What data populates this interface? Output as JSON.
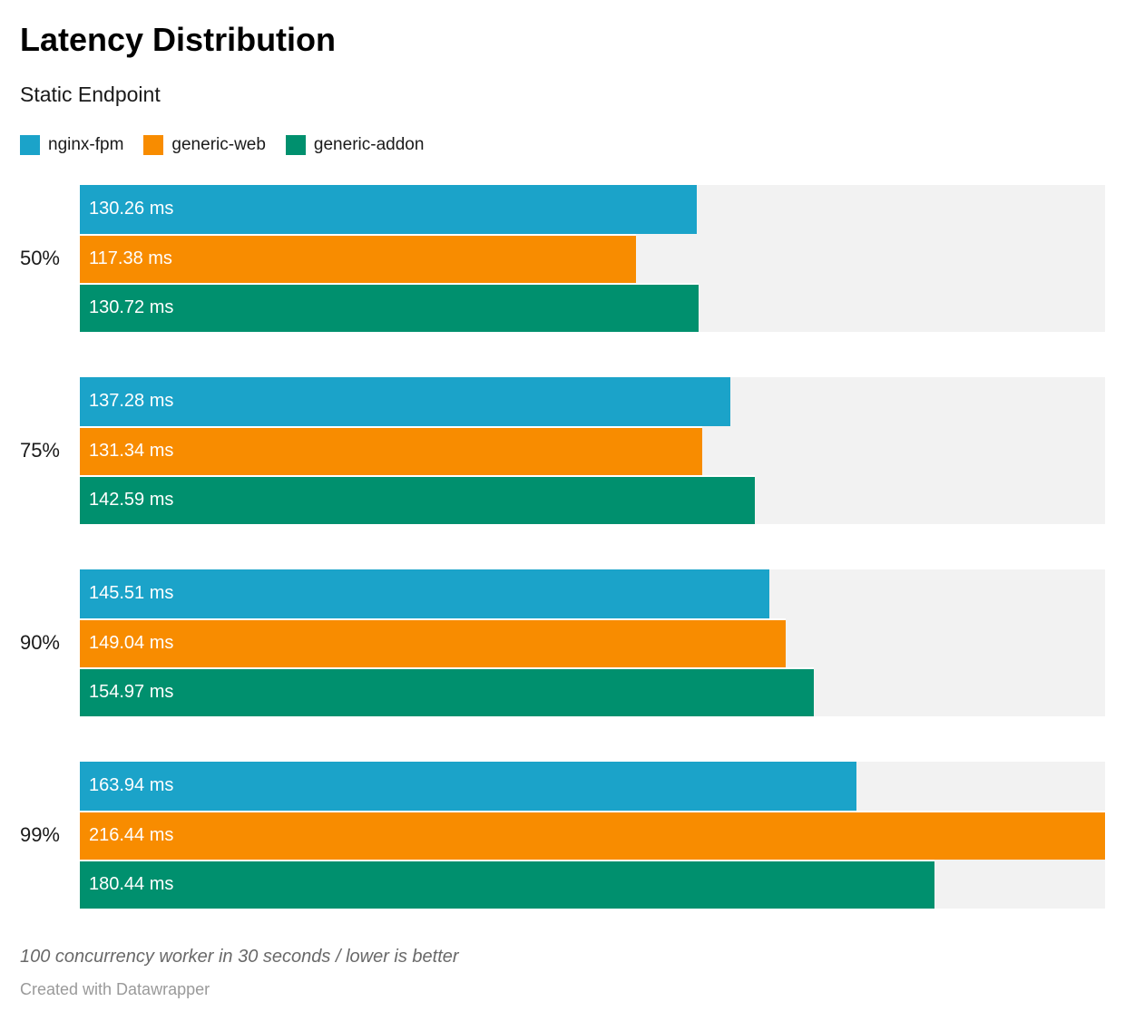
{
  "header": {
    "title": "Latency Distribution",
    "subtitle": "Static Endpoint"
  },
  "colors": {
    "nginx_fpm": "#1ba3c9",
    "generic_web": "#f88c00",
    "generic_addon": "#00906e",
    "track": "#f2f2f2",
    "bar_label": "#ffffff"
  },
  "chart_data": {
    "type": "bar",
    "orientation": "horizontal",
    "unit": "ms",
    "title": "Latency Distribution",
    "subtitle": "Static Endpoint",
    "categories": [
      "50%",
      "75%",
      "90%",
      "99%"
    ],
    "series": [
      {
        "name": "nginx-fpm",
        "color": "#1ba3c9",
        "values": [
          130.26,
          137.28,
          145.51,
          163.94
        ]
      },
      {
        "name": "generic-web",
        "color": "#f88c00",
        "values": [
          117.38,
          131.34,
          149.04,
          216.44
        ]
      },
      {
        "name": "generic-addon",
        "color": "#00906e",
        "values": [
          130.72,
          142.59,
          154.97,
          180.44
        ]
      }
    ],
    "value_label_format": "{value} ms",
    "xlim": [
      0,
      216.44
    ],
    "grid": false,
    "legend_position": "top",
    "track_color": "#f2f2f2"
  },
  "footer": {
    "note": "100 concurrency worker in 30 seconds / lower is better",
    "credit": "Created with Datawrapper"
  }
}
